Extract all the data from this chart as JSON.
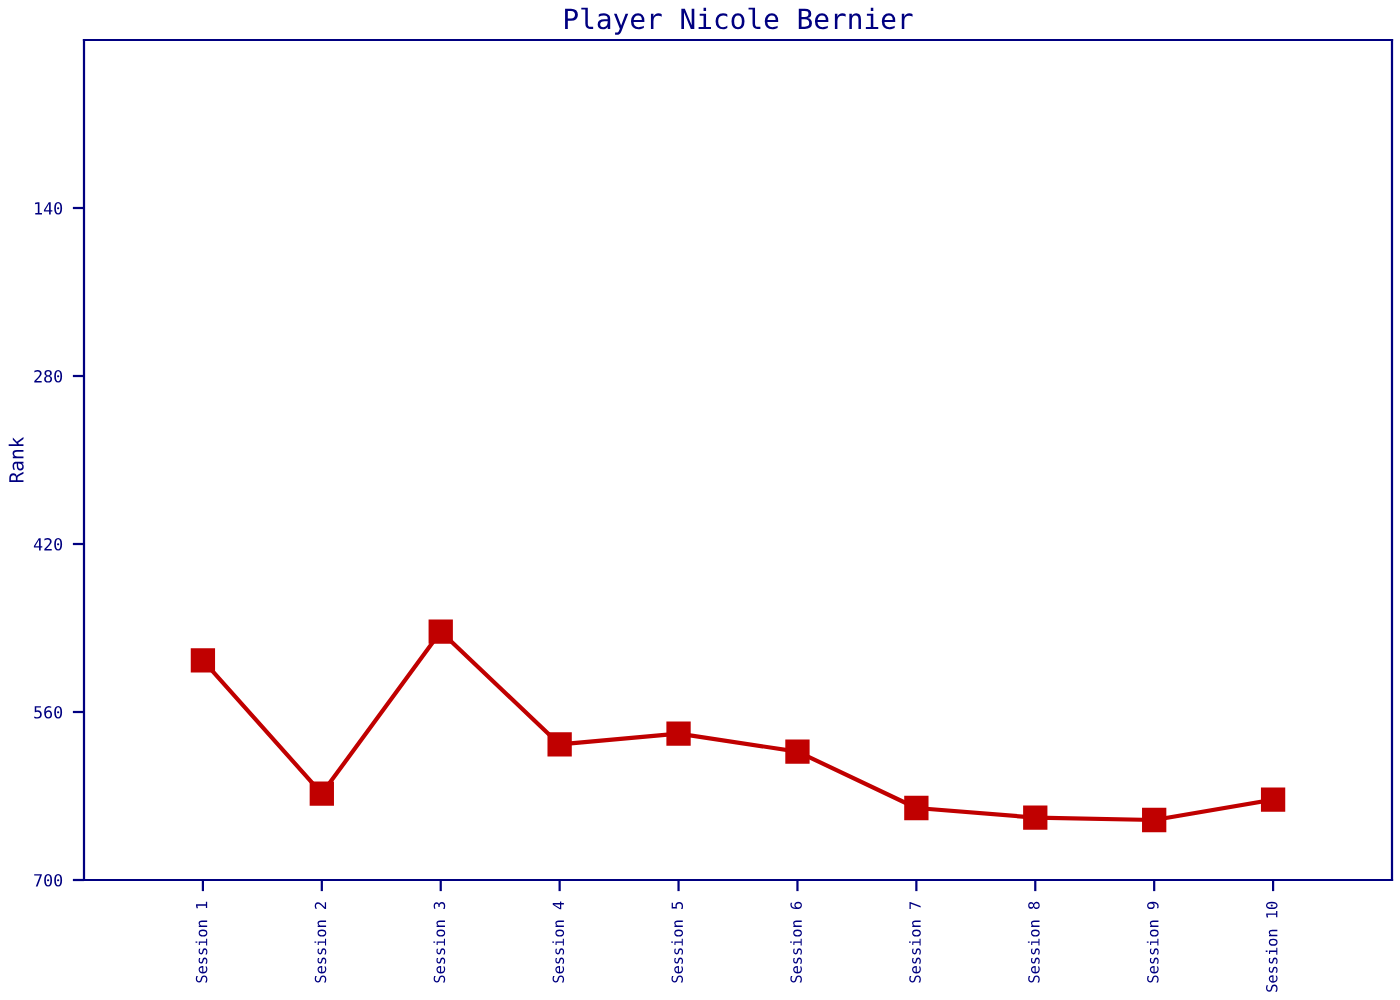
{
  "chart_data": {
    "type": "line",
    "title": "Player Nicole Bernier",
    "ylabel": "Rank",
    "categories": [
      "Session 1",
      "Session 2",
      "Session 3",
      "Session 4",
      "Session 5",
      "Session 6",
      "Session 7",
      "Session 8",
      "Session 9",
      "Session 10"
    ],
    "series": [
      {
        "color": "#c00000",
        "values": [
          517,
          628,
          493,
          587,
          578,
          593,
          640,
          648,
          650,
          633
        ]
      }
    ],
    "ylim": [
      700,
      0
    ],
    "yticks": [
      140,
      280,
      420,
      560,
      700
    ],
    "marker": "square",
    "line_style": "solid",
    "grid": false
  }
}
